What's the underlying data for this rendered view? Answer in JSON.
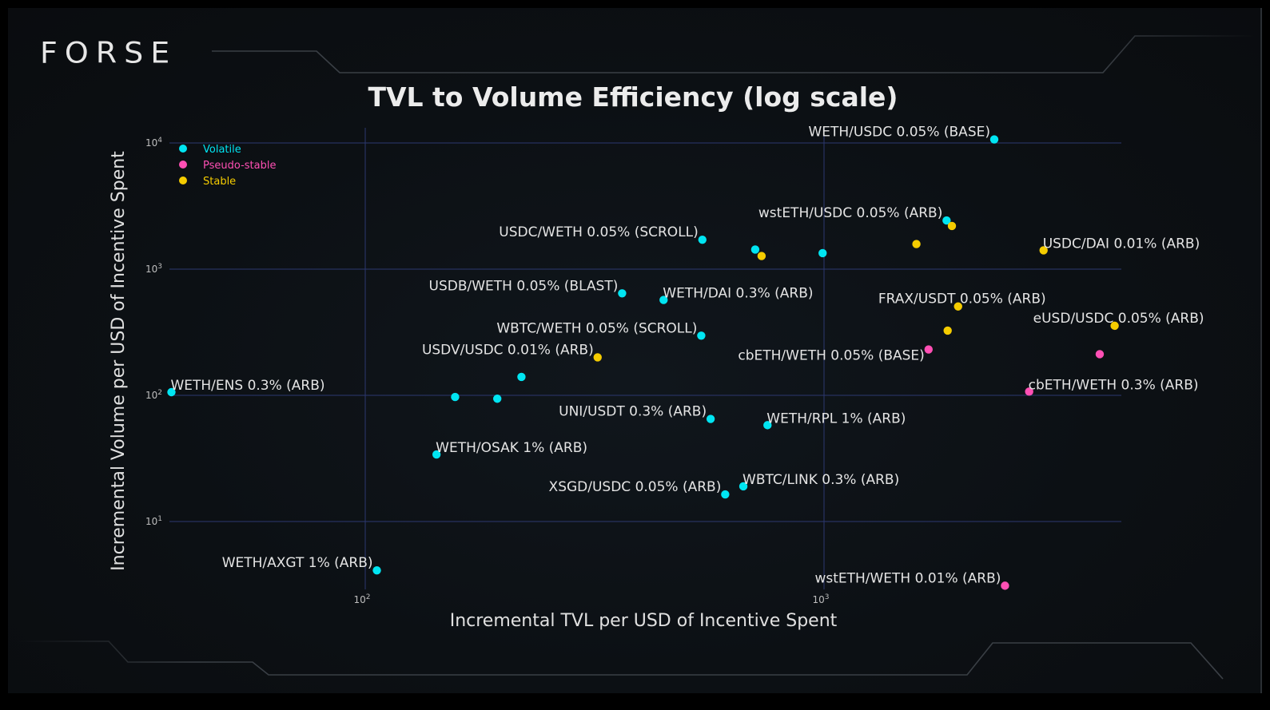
{
  "brand": {
    "logo_text": "FORSE"
  },
  "chart_data": {
    "type": "scatter",
    "title": "TVL to Volume Efficiency (log scale)",
    "xlabel": "Incremental TVL per USD of Incentive Spent",
    "ylabel": "Incremental Volume per USD of Incentive Spent",
    "xscale": "log",
    "yscale": "log",
    "xlim": [
      30,
      5000
    ],
    "ylim": [
      2.5,
      12000
    ],
    "grid": true,
    "legend_position": "top-left",
    "x_ticks": [
      {
        "value": 100,
        "base": "10",
        "exp": "2"
      },
      {
        "value": 1000,
        "base": "10",
        "exp": "3"
      }
    ],
    "y_ticks": [
      {
        "value": 10,
        "base": "10",
        "exp": "1"
      },
      {
        "value": 100,
        "base": "10",
        "exp": "2"
      },
      {
        "value": 1000,
        "base": "10",
        "exp": "3"
      },
      {
        "value": 10000,
        "base": "10",
        "exp": "4"
      }
    ],
    "series": [
      {
        "name": "Volatile",
        "color": "#00e5f2"
      },
      {
        "name": "Pseudo-stable",
        "color": "#ff4fb4"
      },
      {
        "name": "Stable",
        "color": "#f5cc00"
      }
    ],
    "points": [
      {
        "x": 2350,
        "y": 10670,
        "series": "Volatile",
        "label": "WETH/USDC 0.05% (BASE)",
        "label_pos": "left-up"
      },
      {
        "x": 1850,
        "y": 2430,
        "series": "Volatile",
        "label": "wstETH/USDC 0.05% (ARB)",
        "label_pos": "left-up"
      },
      {
        "x": 1900,
        "y": 2200,
        "series": "Stable",
        "label": "",
        "label_pos": ""
      },
      {
        "x": 543,
        "y": 1710,
        "series": "Volatile",
        "label": "USDC/WETH 0.05% (SCROLL)",
        "label_pos": "left-up"
      },
      {
        "x": 708,
        "y": 1430,
        "series": "Volatile",
        "label": "",
        "label_pos": ""
      },
      {
        "x": 731,
        "y": 1270,
        "series": "Stable",
        "label": "",
        "label_pos": ""
      },
      {
        "x": 993,
        "y": 1340,
        "series": "Volatile",
        "label": "",
        "label_pos": ""
      },
      {
        "x": 1590,
        "y": 1580,
        "series": "Stable",
        "label": "",
        "label_pos": ""
      },
      {
        "x": 3010,
        "y": 1410,
        "series": "Stable",
        "label": "USDC/DAI 0.01% (ARB)",
        "label_pos": "right-up"
      },
      {
        "x": 363,
        "y": 643,
        "series": "Volatile",
        "label": "USDB/WETH 0.05% (BLAST)",
        "label_pos": "left-up"
      },
      {
        "x": 447,
        "y": 570,
        "series": "Volatile",
        "label": "WETH/DAI 0.3% (ARB)",
        "label_pos": "right-up"
      },
      {
        "x": 1960,
        "y": 506,
        "series": "Stable",
        "label": "FRAX/USDT 0.05% (ARB)",
        "label_pos": "center-up"
      },
      {
        "x": 1860,
        "y": 326,
        "series": "Stable",
        "label": "",
        "label_pos": ""
      },
      {
        "x": 4300,
        "y": 356,
        "series": "Stable",
        "label": "eUSD/USDC 0.05% (ARB)",
        "label_pos": "center-up"
      },
      {
        "x": 540,
        "y": 297,
        "series": "Volatile",
        "label": "WBTC/WETH 0.05% (SCROLL)",
        "label_pos": "left-up"
      },
      {
        "x": 321,
        "y": 200,
        "series": "Stable",
        "label": "USDV/USDC 0.01% (ARB)",
        "label_pos": "left-up"
      },
      {
        "x": 1690,
        "y": 231,
        "series": "Pseudo-stable",
        "label": "cbETH/WETH 0.05% (BASE)",
        "label_pos": "left-down"
      },
      {
        "x": 3990,
        "y": 212,
        "series": "Pseudo-stable",
        "label": "",
        "label_pos": ""
      },
      {
        "x": 37.8,
        "y": 106,
        "series": "Volatile",
        "label": "WETH/ENS 0.3% (ARB)",
        "label_pos": "right-up"
      },
      {
        "x": 219,
        "y": 140,
        "series": "Volatile",
        "label": "",
        "label_pos": ""
      },
      {
        "x": 157,
        "y": 97,
        "series": "Volatile",
        "label": "",
        "label_pos": ""
      },
      {
        "x": 194,
        "y": 94,
        "series": "Volatile",
        "label": "",
        "label_pos": ""
      },
      {
        "x": 2800,
        "y": 107,
        "series": "Pseudo-stable",
        "label": "cbETH/WETH 0.3% (ARB)",
        "label_pos": "right-up"
      },
      {
        "x": 566,
        "y": 65,
        "series": "Volatile",
        "label": "UNI/USDT 0.3% (ARB)",
        "label_pos": "left-up"
      },
      {
        "x": 753,
        "y": 58,
        "series": "Volatile",
        "label": "WETH/RPL 1% (ARB)",
        "label_pos": "right-up"
      },
      {
        "x": 143,
        "y": 34,
        "series": "Volatile",
        "label": "WETH/OSAK 1% (ARB)",
        "label_pos": "right-up"
      },
      {
        "x": 667,
        "y": 19,
        "series": "Volatile",
        "label": "WBTC/LINK 0.3% (ARB)",
        "label_pos": "right-up"
      },
      {
        "x": 609,
        "y": 16.4,
        "series": "Volatile",
        "label": "XSGD/USDC 0.05% (ARB)",
        "label_pos": "left-up"
      },
      {
        "x": 106,
        "y": 4.1,
        "series": "Volatile",
        "label": "WETH/AXGT 1% (ARB)",
        "label_pos": "left-up"
      },
      {
        "x": 2480,
        "y": 3.1,
        "series": "Pseudo-stable",
        "label": "wstETH/WETH 0.01% (ARB)",
        "label_pos": "left-up"
      }
    ]
  }
}
